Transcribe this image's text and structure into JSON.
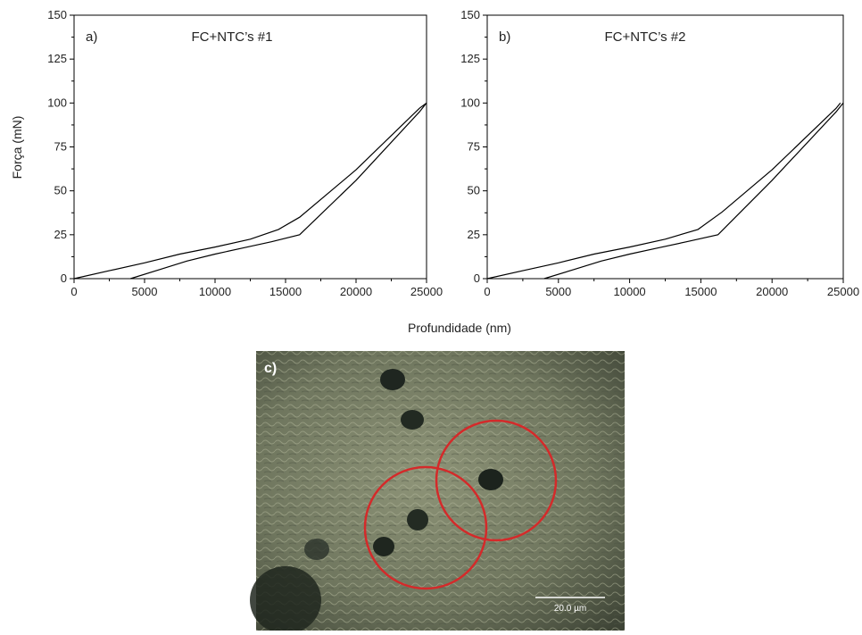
{
  "figure": {
    "xlabel": "Profundidade (nm)",
    "ylabel": "Força (mN)"
  },
  "chart_data": [
    {
      "type": "line",
      "panel": "a)",
      "title": "FC+NTC’s #1",
      "series": [
        {
          "color": "#000000",
          "x": [
            0,
            2500,
            5000,
            7500,
            10000,
            12500,
            14500,
            16000,
            20000,
            24500,
            25000
          ],
          "values": [
            0,
            4.5,
            9,
            14,
            18,
            22.5,
            28,
            35,
            62,
            97,
            100
          ]
        },
        {
          "color": "#000000",
          "x": [
            25000,
            24500,
            20000,
            16000,
            14000,
            12000,
            10000,
            8000,
            6000,
            4000
          ],
          "values": [
            100,
            95,
            56,
            25,
            21,
            17.5,
            14,
            10,
            5,
            0
          ]
        }
      ],
      "xlim": [
        0,
        25000
      ],
      "xticks": [
        0,
        5000,
        10000,
        15000,
        20000,
        25000
      ],
      "ylim": [
        0,
        150
      ],
      "yticks": [
        0,
        25,
        50,
        75,
        100,
        125,
        150
      ]
    },
    {
      "type": "line",
      "panel": "b)",
      "title": "FC+NTC’s #2",
      "series": [
        {
          "color": "#000000",
          "x": [
            0,
            2500,
            5000,
            7500,
            10000,
            12500,
            14800,
            16500,
            20000,
            24500,
            24800
          ],
          "values": [
            0,
            4.5,
            9,
            14,
            18,
            22.5,
            28,
            38,
            62,
            97,
            100
          ]
        },
        {
          "color": "#000000",
          "x": [
            25000,
            24500,
            20000,
            16200,
            14000,
            12000,
            10000,
            8000,
            6000,
            4000
          ],
          "values": [
            100,
            95,
            56,
            25,
            21,
            17.5,
            14,
            10,
            5,
            0
          ]
        }
      ],
      "xlim": [
        0,
        25000
      ],
      "xticks": [
        0,
        5000,
        10000,
        15000,
        20000,
        25000
      ],
      "ylim": [
        0,
        150
      ],
      "yticks": [
        0,
        25,
        50,
        75,
        100,
        125,
        150
      ]
    }
  ],
  "image": {
    "label": "c)",
    "scale_bar": "20.0 µm"
  }
}
